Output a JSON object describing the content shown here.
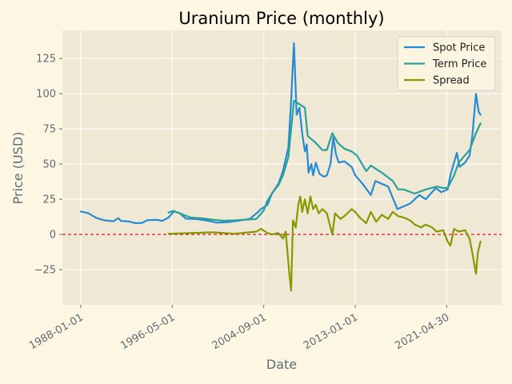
{
  "chart_data": {
    "type": "line",
    "title": "Uranium Price (monthly)",
    "xlabel": "Date",
    "ylabel": "Price (USD)",
    "x_ticks": [
      "1988-01-01",
      "1996-05-01",
      "2004-09-01",
      "2013-01-01",
      "2021-04-30"
    ],
    "y_ticks": [
      -25,
      0,
      25,
      50,
      75,
      100,
      125
    ],
    "xlim": [
      "1986-05-01",
      "2026-05-01"
    ],
    "ylim": [
      -50,
      145
    ],
    "grid": true,
    "legend_position": "top-right",
    "reference_line": {
      "y": 0,
      "color": "#dd0000",
      "style": "dashed"
    },
    "colors": {
      "background": "#fdf6e3",
      "plot_area": "#eee8d5",
      "grid": "#ffffff",
      "text": "#5e6d74"
    },
    "series": [
      {
        "name": "Spot Price",
        "color": "#268bd2",
        "points": [
          [
            "1988-01-01",
            16.3
          ],
          [
            "1988-09-01",
            15.2
          ],
          [
            "1989-06-01",
            11.8
          ],
          [
            "1990-03-01",
            10.0
          ],
          [
            "1991-01-01",
            9.4
          ],
          [
            "1991-06-01",
            11.6
          ],
          [
            "1991-09-01",
            9.6
          ],
          [
            "1992-06-01",
            9.2
          ],
          [
            "1993-01-01",
            8.0
          ],
          [
            "1993-08-01",
            8.2
          ],
          [
            "1994-02-01",
            10.2
          ],
          [
            "1995-01-01",
            10.4
          ],
          [
            "1995-06-01",
            9.6
          ],
          [
            "1996-01-01",
            12.0
          ],
          [
            "1996-07-01",
            16.4
          ],
          [
            "1997-01-01",
            15.2
          ],
          [
            "1997-08-01",
            11.2
          ],
          [
            "1998-06-01",
            11.0
          ],
          [
            "1999-06-01",
            10.0
          ],
          [
            "2000-06-01",
            8.4
          ],
          [
            "2001-06-01",
            8.8
          ],
          [
            "2002-06-01",
            9.8
          ],
          [
            "2003-06-01",
            11.2
          ],
          [
            "2004-01-01",
            15.0
          ],
          [
            "2004-06-01",
            18.0
          ],
          [
            "2005-01-01",
            21.0
          ],
          [
            "2005-06-01",
            29.0
          ],
          [
            "2006-01-01",
            36.0
          ],
          [
            "2006-06-01",
            45.0
          ],
          [
            "2006-12-01",
            62.0
          ],
          [
            "2007-03-01",
            95.0
          ],
          [
            "2007-06-01",
            136.0
          ],
          [
            "2007-07-01",
            120.0
          ],
          [
            "2007-09-01",
            85.0
          ],
          [
            "2007-12-01",
            90.0
          ],
          [
            "2008-03-01",
            72.0
          ],
          [
            "2008-06-01",
            59.0
          ],
          [
            "2008-08-01",
            64.0
          ],
          [
            "2008-10-01",
            44.0
          ],
          [
            "2009-01-01",
            50.0
          ],
          [
            "2009-03-01",
            42.0
          ],
          [
            "2009-06-01",
            51.0
          ],
          [
            "2009-10-01",
            43.0
          ],
          [
            "2010-03-01",
            41.0
          ],
          [
            "2010-06-01",
            42.0
          ],
          [
            "2010-10-01",
            50.0
          ],
          [
            "2011-01-01",
            69.0
          ],
          [
            "2011-04-01",
            57.0
          ],
          [
            "2011-07-01",
            51.0
          ],
          [
            "2012-01-01",
            52.0
          ],
          [
            "2012-09-01",
            48.0
          ],
          [
            "2013-01-01",
            42.0
          ],
          [
            "2013-09-01",
            36.0
          ],
          [
            "2014-06-01",
            28.0
          ],
          [
            "2014-11-01",
            38.0
          ],
          [
            "2015-06-01",
            36.0
          ],
          [
            "2016-01-01",
            34.0
          ],
          [
            "2016-11-01",
            18.0
          ],
          [
            "2017-06-01",
            20.0
          ],
          [
            "2018-01-01",
            22.0
          ],
          [
            "2018-11-01",
            28.0
          ],
          [
            "2019-06-01",
            25.0
          ],
          [
            "2020-05-01",
            33.0
          ],
          [
            "2020-11-01",
            30.0
          ],
          [
            "2021-06-01",
            32.0
          ],
          [
            "2021-09-01",
            42.0
          ],
          [
            "2022-04-01",
            58.0
          ],
          [
            "2022-07-01",
            48.0
          ],
          [
            "2023-01-01",
            51.0
          ],
          [
            "2023-06-01",
            56.0
          ],
          [
            "2023-09-01",
            70.0
          ],
          [
            "2024-01-01",
            100.0
          ],
          [
            "2024-04-01",
            87.0
          ],
          [
            "2024-06-01",
            85.0
          ]
        ]
      },
      {
        "name": "Term Price",
        "color": "#2aa198",
        "points": [
          [
            "1996-01-01",
            15.5
          ],
          [
            "1996-06-01",
            16.8
          ],
          [
            "1997-01-01",
            15.0
          ],
          [
            "1998-01-01",
            12.0
          ],
          [
            "1999-01-01",
            11.5
          ],
          [
            "2000-01-01",
            10.5
          ],
          [
            "2001-01-01",
            9.8
          ],
          [
            "2002-01-01",
            10.0
          ],
          [
            "2003-01-01",
            10.5
          ],
          [
            "2004-01-01",
            11.0
          ],
          [
            "2004-09-01",
            17.0
          ],
          [
            "2005-01-01",
            24.0
          ],
          [
            "2005-06-01",
            29.0
          ],
          [
            "2006-01-01",
            35.0
          ],
          [
            "2006-06-01",
            42.0
          ],
          [
            "2006-12-01",
            55.0
          ],
          [
            "2007-03-01",
            75.0
          ],
          [
            "2007-06-01",
            95.0
          ],
          [
            "2008-06-01",
            90.0
          ],
          [
            "2008-09-01",
            70.0
          ],
          [
            "2009-06-01",
            65.0
          ],
          [
            "2010-01-01",
            60.0
          ],
          [
            "2010-06-01",
            60.0
          ],
          [
            "2010-12-01",
            72.0
          ],
          [
            "2011-06-01",
            65.0
          ],
          [
            "2012-01-01",
            61.0
          ],
          [
            "2012-09-01",
            59.0
          ],
          [
            "2013-03-01",
            56.0
          ],
          [
            "2014-01-01",
            45.0
          ],
          [
            "2014-06-01",
            49.0
          ],
          [
            "2015-06-01",
            44.0
          ],
          [
            "2016-06-01",
            38.0
          ],
          [
            "2016-12-01",
            32.0
          ],
          [
            "2017-06-01",
            32.0
          ],
          [
            "2018-06-01",
            29.0
          ],
          [
            "2019-06-01",
            32.0
          ],
          [
            "2020-06-01",
            34.0
          ],
          [
            "2021-01-01",
            33.0
          ],
          [
            "2021-06-01",
            33.0
          ],
          [
            "2022-01-01",
            42.0
          ],
          [
            "2022-06-01",
            51.0
          ],
          [
            "2023-06-01",
            60.0
          ],
          [
            "2024-01-01",
            72.0
          ],
          [
            "2024-06-01",
            79.0
          ]
        ]
      },
      {
        "name": "Spread",
        "color": "#859900",
        "points": [
          [
            "1996-01-01",
            0.5
          ],
          [
            "1998-01-01",
            1.0
          ],
          [
            "2000-01-01",
            1.5
          ],
          [
            "2002-01-01",
            0.5
          ],
          [
            "2004-01-01",
            2.0
          ],
          [
            "2004-06-01",
            4.0
          ],
          [
            "2005-01-01",
            1.0
          ],
          [
            "2005-06-01",
            0.0
          ],
          [
            "2006-01-01",
            1.0
          ],
          [
            "2006-06-01",
            -3.0
          ],
          [
            "2006-09-01",
            2.0
          ],
          [
            "2007-01-01",
            -28.0
          ],
          [
            "2007-03-01",
            -40.0
          ],
          [
            "2007-05-01",
            10.0
          ],
          [
            "2007-08-01",
            5.0
          ],
          [
            "2007-11-01",
            22.0
          ],
          [
            "2008-01-01",
            27.0
          ],
          [
            "2008-03-01",
            16.0
          ],
          [
            "2008-06-01",
            25.0
          ],
          [
            "2008-09-01",
            15.0
          ],
          [
            "2008-12-01",
            27.0
          ],
          [
            "2009-03-01",
            18.0
          ],
          [
            "2009-06-01",
            21.0
          ],
          [
            "2009-09-01",
            15.0
          ],
          [
            "2010-01-01",
            18.0
          ],
          [
            "2010-06-01",
            15.0
          ],
          [
            "2010-12-01",
            0.0
          ],
          [
            "2011-03-01",
            15.0
          ],
          [
            "2011-09-01",
            11.0
          ],
          [
            "2012-03-01",
            14.0
          ],
          [
            "2012-09-01",
            18.0
          ],
          [
            "2013-01-01",
            16.0
          ],
          [
            "2013-06-01",
            12.0
          ],
          [
            "2014-01-01",
            8.0
          ],
          [
            "2014-06-01",
            16.0
          ],
          [
            "2014-12-01",
            9.0
          ],
          [
            "2015-06-01",
            14.0
          ],
          [
            "2016-01-01",
            11.0
          ],
          [
            "2016-06-01",
            16.0
          ],
          [
            "2016-12-01",
            13.0
          ],
          [
            "2017-06-01",
            12.0
          ],
          [
            "2018-01-01",
            10.0
          ],
          [
            "2018-06-01",
            7.0
          ],
          [
            "2019-01-01",
            5.0
          ],
          [
            "2019-06-01",
            7.0
          ],
          [
            "2020-01-01",
            5.0
          ],
          [
            "2020-06-01",
            2.0
          ],
          [
            "2021-01-01",
            3.0
          ],
          [
            "2021-06-01",
            -5.0
          ],
          [
            "2021-09-01",
            -8.0
          ],
          [
            "2022-01-01",
            4.0
          ],
          [
            "2022-06-01",
            2.0
          ],
          [
            "2023-01-01",
            3.0
          ],
          [
            "2023-06-01",
            -3.0
          ],
          [
            "2023-09-01",
            -13.0
          ],
          [
            "2024-01-01",
            -28.0
          ],
          [
            "2024-03-01",
            -13.0
          ],
          [
            "2024-06-01",
            -5.0
          ]
        ]
      }
    ]
  }
}
